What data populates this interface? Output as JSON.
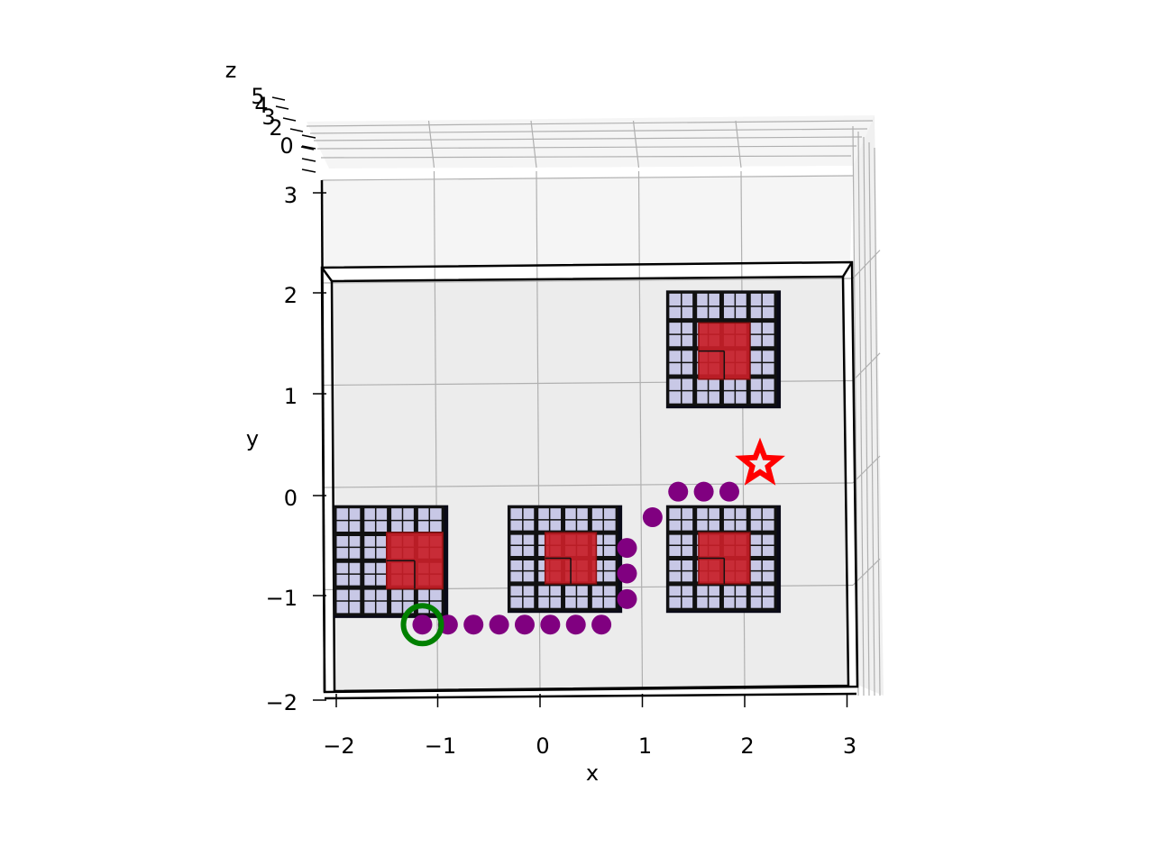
{
  "chart_data": {
    "type": "scatter",
    "title": "",
    "xlabel": "x",
    "ylabel": "y",
    "zlabel": "z",
    "x_ticks": [
      "−2",
      "−1",
      "0",
      "1",
      "2",
      "3"
    ],
    "y_ticks": [
      "−2",
      "−1",
      "0",
      "1",
      "2",
      "3"
    ],
    "z_ticks": [
      "0",
      "2",
      "3",
      "4",
      "5"
    ],
    "xlim": [
      -2.1,
      3.1
    ],
    "ylim": [
      -2.0,
      3.2
    ],
    "grid": true,
    "path_points": [
      [
        -1.15,
        -1.35
      ],
      [
        -0.9,
        -1.35
      ],
      [
        -0.65,
        -1.35
      ],
      [
        -0.4,
        -1.35
      ],
      [
        -0.15,
        -1.35
      ],
      [
        0.1,
        -1.35
      ],
      [
        0.35,
        -1.35
      ],
      [
        0.6,
        -1.35
      ],
      [
        0.85,
        -1.1
      ],
      [
        0.85,
        -0.85
      ],
      [
        0.85,
        -0.6
      ],
      [
        1.1,
        -0.3
      ],
      [
        1.35,
        -0.05
      ],
      [
        1.6,
        -0.05
      ],
      [
        1.85,
        -0.05
      ]
    ],
    "start": [
      -1.15,
      -1.35
    ],
    "goal": [
      2.15,
      0.22
    ],
    "obstacles": [
      {
        "x0": -2.0,
        "y0": -1.25,
        "x1": -0.95,
        "y1": -0.2,
        "core": [
          -1.5,
          -0.95,
          -1.0,
          -0.45
        ]
      },
      {
        "x0": -0.3,
        "y0": -1.2,
        "x1": 0.75,
        "y1": -0.2,
        "core": [
          0.05,
          0.55,
          -0.95,
          -0.45
        ]
      },
      {
        "x0": 1.25,
        "y0": -1.2,
        "x1": 2.3,
        "y1": -0.2,
        "core": [
          1.55,
          2.05,
          -0.95,
          -0.45
        ]
      },
      {
        "x0": 1.25,
        "y0": 0.8,
        "x1": 2.3,
        "y1": 1.9,
        "core": [
          1.55,
          2.05,
          1.05,
          1.6
        ]
      }
    ],
    "colors": {
      "path": "#800080",
      "start": "#008000",
      "goal": "#ff0000",
      "obstacle_shell": "#c8c8e6",
      "obstacle_core": "#c81e28",
      "pane": "#ececec"
    }
  }
}
